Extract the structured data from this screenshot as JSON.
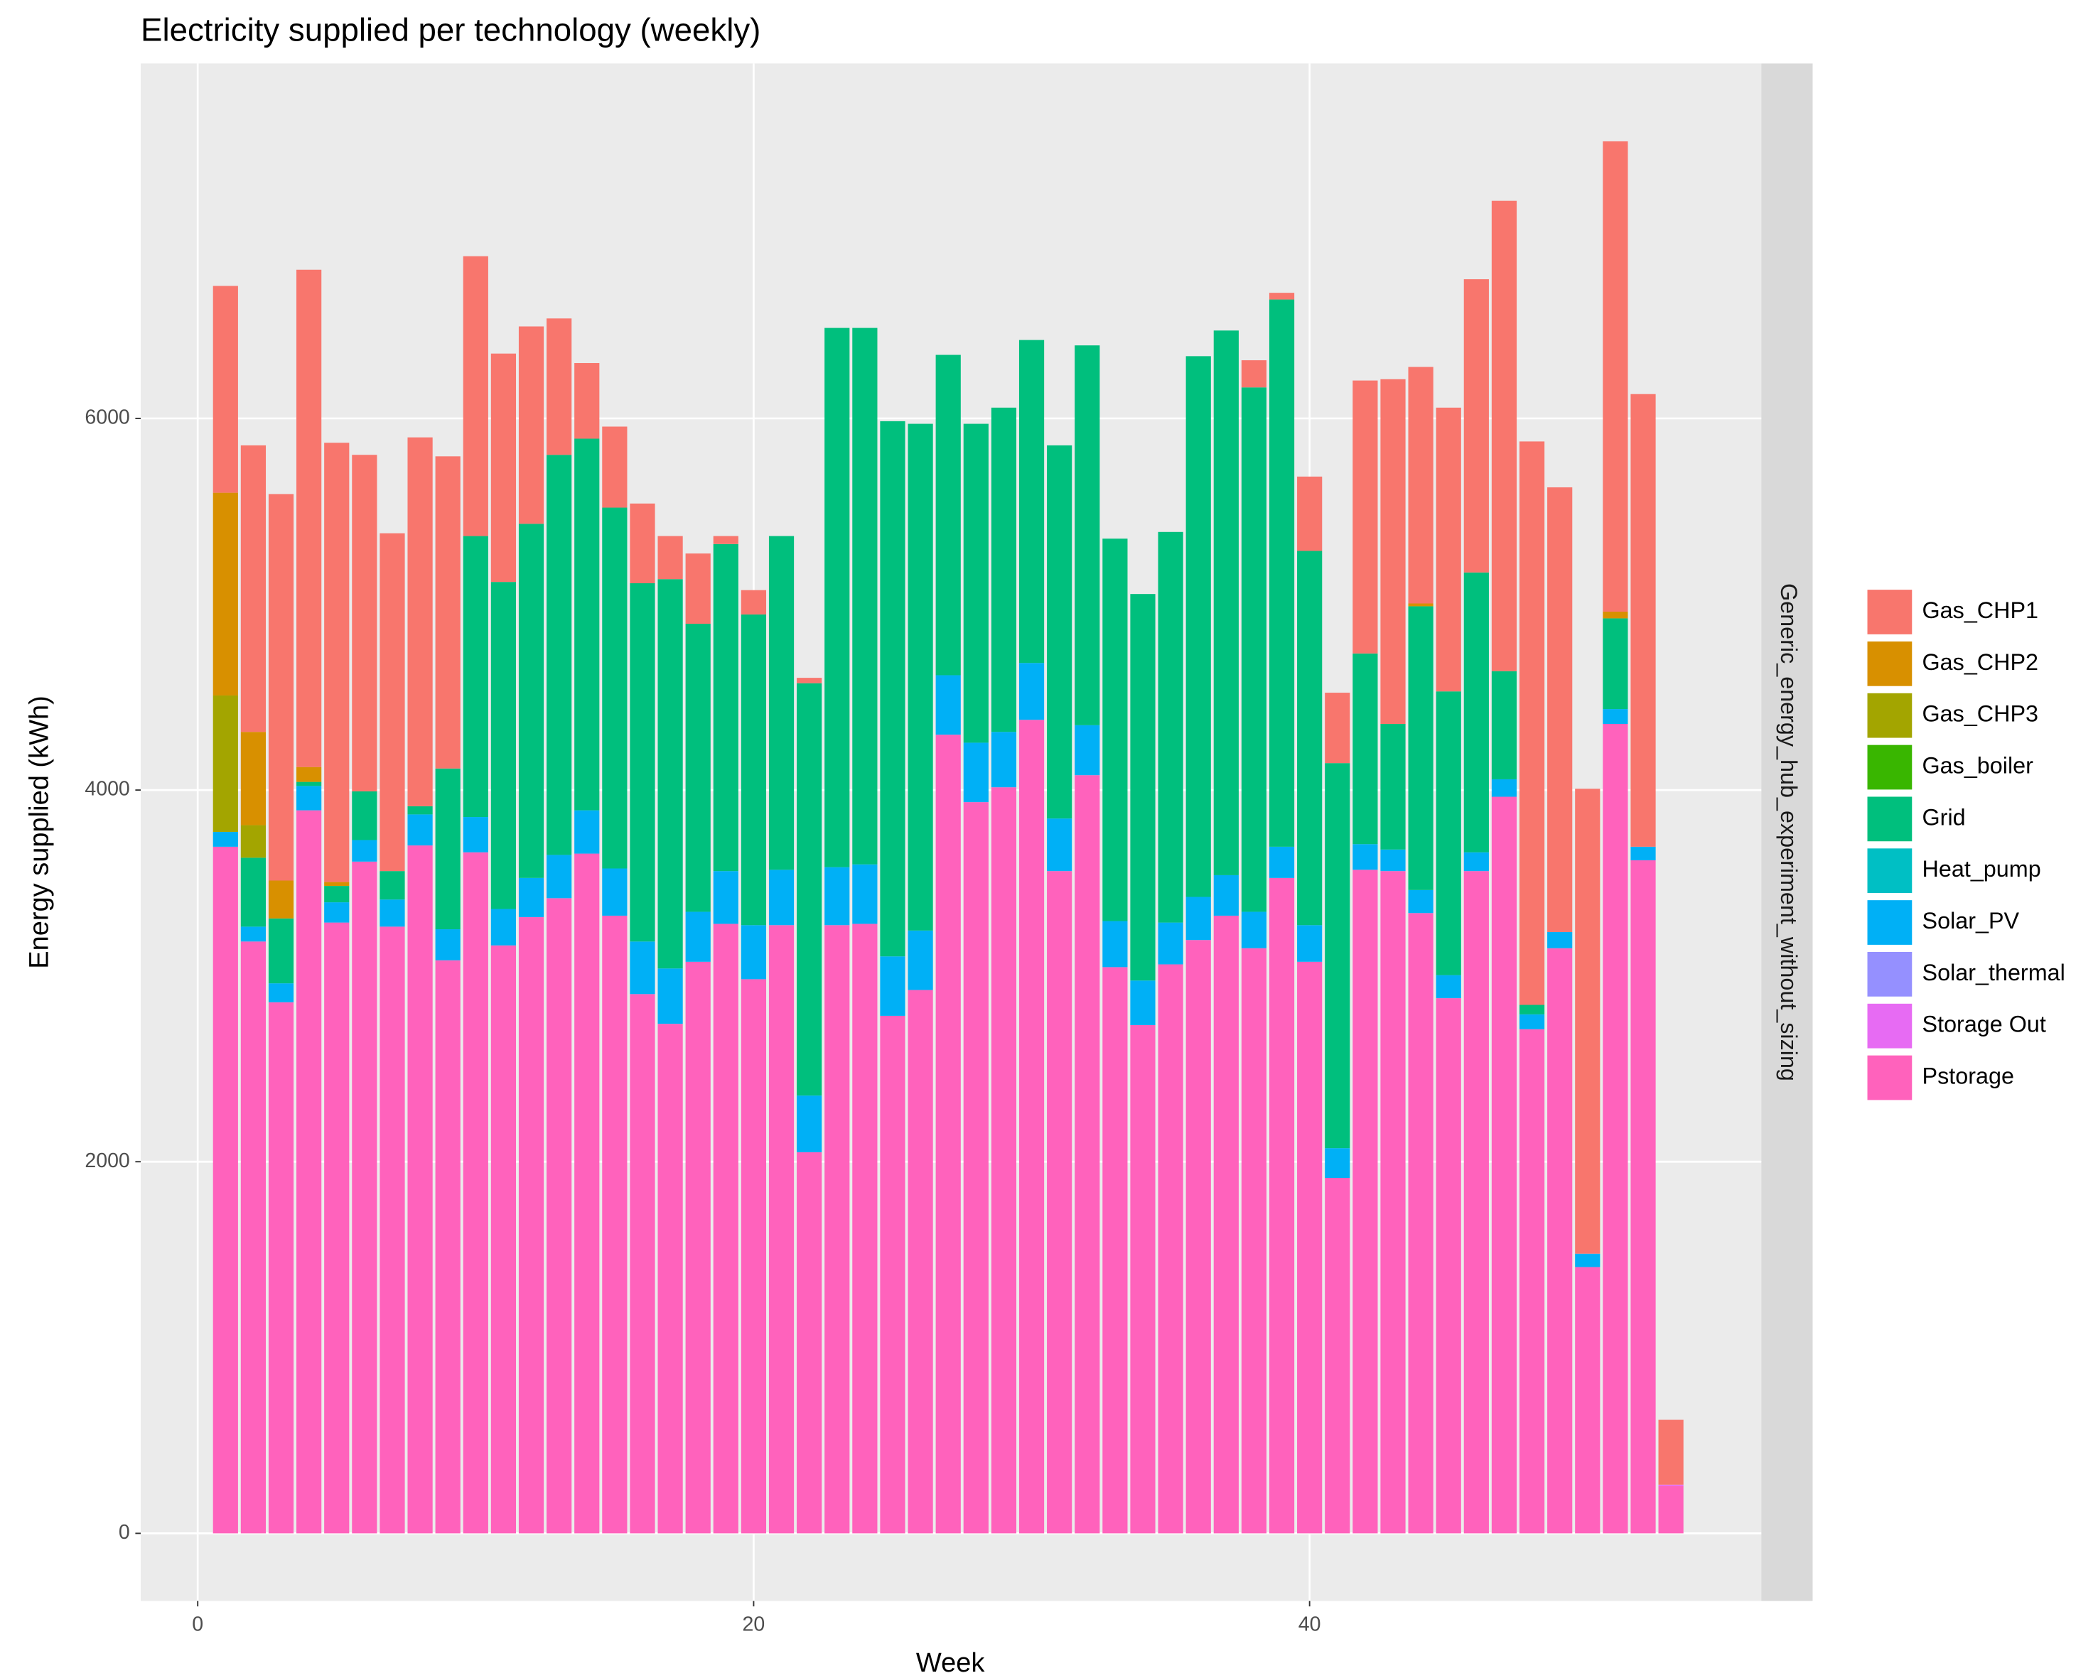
{
  "chart_data": {
    "type": "bar",
    "stacked": true,
    "title": "Electricity supplied per technology (weekly)",
    "x_label": "Week",
    "y_label": "Energy supplied (kWh)",
    "facet_label": "Generic_energy_hub_experiment_without_sizing",
    "grid": true,
    "legend_position": "right",
    "xlim": [
      -2.05,
      56.25
    ],
    "xticks": [
      0,
      20,
      40
    ],
    "ylim": [
      -364,
      7910
    ],
    "yticks": [
      0,
      2000,
      4000,
      6000
    ],
    "x": [
      1,
      2,
      3,
      4,
      5,
      6,
      7,
      8,
      9,
      10,
      11,
      12,
      13,
      14,
      15,
      16,
      17,
      18,
      19,
      20,
      21,
      22,
      23,
      24,
      25,
      26,
      27,
      28,
      29,
      30,
      31,
      32,
      33,
      34,
      35,
      36,
      37,
      38,
      39,
      40,
      41,
      42,
      43,
      44,
      45,
      46,
      47,
      48,
      49,
      50,
      51,
      52,
      53
    ],
    "series": [
      {
        "name": "Gas_CHP1",
        "color": "#F8766D",
        "values": [
          1113,
          1542,
          2080,
          2676,
          2364,
          1811,
          1818,
          1985,
          1680,
          1506,
          1229,
          1062,
          734,
          407,
          436,
          429,
          232,
          378,
          43,
          131,
          0,
          29,
          0,
          0,
          0,
          0,
          0,
          0,
          0,
          0,
          0,
          0,
          0,
          0,
          0,
          0,
          0,
          146,
          36,
          400,
          379,
          1469,
          1855,
          1273,
          1527,
          1578,
          2531,
          3032,
          2393,
          2502,
          2531,
          2436,
          349
        ]
      },
      {
        "name": "Gas_CHP2",
        "color": "#D89000",
        "values": [
          1091,
          502,
          204,
          80,
          21,
          0,
          0,
          0,
          0,
          0,
          0,
          0,
          0,
          0,
          0,
          0,
          0,
          0,
          0,
          0,
          0,
          0,
          0,
          0,
          0,
          0,
          0,
          0,
          0,
          0,
          0,
          0,
          0,
          0,
          0,
          0,
          0,
          0,
          0,
          0,
          0,
          0,
          0,
          15,
          0,
          0,
          0,
          0,
          0,
          0,
          36,
          0,
          0
        ]
      },
      {
        "name": "Gas_CHP3",
        "color": "#A3A500",
        "values": [
          734,
          175,
          0,
          0,
          0,
          0,
          0,
          0,
          0,
          0,
          0,
          0,
          0,
          0,
          0,
          0,
          0,
          0,
          0,
          0,
          0,
          0,
          0,
          0,
          0,
          0,
          0,
          0,
          0,
          0,
          0,
          0,
          0,
          0,
          0,
          0,
          0,
          0,
          0,
          0,
          0,
          0,
          0,
          0,
          0,
          0,
          0,
          0,
          0,
          0,
          0,
          0,
          0
        ]
      },
      {
        "name": "Gas_boiler",
        "color": "#39B600",
        "values": [
          0,
          0,
          0,
          0,
          0,
          0,
          0,
          0,
          0,
          0,
          0,
          0,
          0,
          0,
          0,
          0,
          0,
          0,
          0,
          0,
          0,
          0,
          0,
          0,
          0,
          0,
          0,
          0,
          0,
          0,
          0,
          0,
          0,
          0,
          0,
          0,
          0,
          0,
          0,
          0,
          0,
          0,
          0,
          0,
          0,
          0,
          0,
          0,
          0,
          0,
          0,
          0,
          0
        ]
      },
      {
        "name": "Grid",
        "color": "#00BF7D",
        "values": [
          0,
          371,
          349,
          22,
          88,
          262,
          153,
          44,
          865,
          1512,
          1760,
          1906,
          2153,
          2000,
          1942,
          1928,
          2095,
          1550,
          1760,
          1672,
          1796,
          2219,
          2902,
          2887,
          2880,
          2727,
          1724,
          1716,
          1745,
          1738,
          2008,
          2044,
          2058,
          2080,
          2102,
          2910,
          2931,
          2822,
          2945,
          2014,
          2072,
          1026,
          676,
          1527,
          1527,
          1506,
          582,
          51,
          0,
          0,
          488,
          0,
          0
        ]
      },
      {
        "name": "Heat_pump",
        "color": "#00BFC4",
        "values": [
          0,
          0,
          0,
          0,
          0,
          0,
          0,
          0,
          0,
          0,
          0,
          0,
          0,
          0,
          0,
          0,
          0,
          0,
          0,
          0,
          0,
          0,
          0,
          0,
          0,
          0,
          0,
          0,
          0,
          0,
          0,
          0,
          0,
          0,
          0,
          0,
          0,
          0,
          0,
          0,
          0,
          0,
          0,
          0,
          0,
          0,
          0,
          0,
          0,
          0,
          0,
          0,
          0
        ]
      },
      {
        "name": "Solar_PV",
        "color": "#00B0F6",
        "values": [
          80,
          80,
          102,
          131,
          109,
          116,
          146,
          167,
          167,
          190,
          196,
          211,
          233,
          233,
          254,
          283,
          298,
          269,
          284,
          291,
          298,
          305,
          312,
          320,
          320,
          320,
          320,
          320,
          298,
          306,
          283,
          269,
          248,
          240,
          225,
          232,
          218,
          196,
          168,
          197,
          160,
          138,
          116,
          124,
          124,
          101,
          94,
          80,
          87,
          72,
          80,
          73,
          0
        ]
      },
      {
        "name": "Solar_thermal",
        "color": "#9590FF",
        "values": [
          0,
          0,
          0,
          0,
          0,
          0,
          0,
          0,
          0,
          0,
          0,
          0,
          0,
          0,
          0,
          0,
          0,
          0,
          0,
          0,
          0,
          0,
          0,
          0,
          0,
          0,
          0,
          0,
          0,
          0,
          0,
          0,
          0,
          0,
          0,
          0,
          0,
          0,
          0,
          0,
          0,
          0,
          0,
          0,
          0,
          0,
          0,
          0,
          0,
          0,
          0,
          0,
          0
        ]
      },
      {
        "name": "Storage Out",
        "color": "#E76BF3",
        "values": [
          0,
          0,
          0,
          0,
          0,
          0,
          0,
          0,
          0,
          0,
          0,
          0,
          0,
          0,
          0,
          0,
          0,
          0,
          0,
          0,
          0,
          0,
          0,
          0,
          0,
          0,
          0,
          0,
          0,
          0,
          0,
          0,
          0,
          0,
          0,
          0,
          0,
          0,
          0,
          0,
          0,
          0,
          0,
          0,
          0,
          0,
          0,
          0,
          0,
          0,
          0,
          0,
          7
        ]
      },
      {
        "name": "Pstorage",
        "color": "#FF62BC",
        "values": [
          3695,
          3185,
          2858,
          3891,
          3287,
          3615,
          3265,
          3702,
          3084,
          3665,
          3164,
          3316,
          3418,
          3658,
          3324,
          2902,
          2742,
          3076,
          3280,
          2982,
          3273,
          2051,
          3273,
          3280,
          2785,
          2924,
          4298,
          3935,
          4015,
          4378,
          3564,
          4080,
          3047,
          2735,
          3062,
          3193,
          3324,
          3149,
          3527,
          3076,
          1913,
          3571,
          3564,
          3338,
          2880,
          3564,
          3964,
          2713,
          3149,
          1433,
          4356,
          3622,
          255
        ]
      }
    ]
  }
}
